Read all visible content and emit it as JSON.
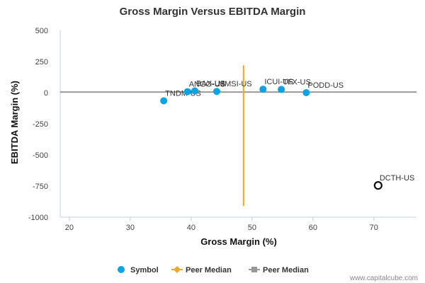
{
  "chart_data": {
    "type": "scatter",
    "title": "Gross Margin Versus EBITDA Margin",
    "xlabel": "Gross Margin (%)",
    "ylabel": "EBITDA Margin (%)",
    "xlim": [
      18.5,
      77
    ],
    "ylim": [
      -1000,
      500
    ],
    "x_ticks": [
      20,
      30,
      40,
      50,
      60,
      70
    ],
    "y_ticks": [
      500,
      250,
      0,
      -250,
      -500,
      -750,
      -1000
    ],
    "points": [
      {
        "label": "TNDM-US",
        "x": 35.5,
        "y": -65,
        "style": "filled"
      },
      {
        "label": "ANGO-US",
        "x": 39.4,
        "y": 8,
        "style": "filled"
      },
      {
        "label": "BAX-US",
        "x": 40.6,
        "y": 14,
        "style": "filled"
      },
      {
        "label": "MMSI-US",
        "x": 44.2,
        "y": 10,
        "style": "filled"
      },
      {
        "label": "ICUI-US",
        "x": 51.8,
        "y": 28,
        "style": "filled"
      },
      {
        "label": "TFX-US",
        "x": 54.8,
        "y": 26,
        "style": "filled"
      },
      {
        "label": "PODD-US",
        "x": 58.9,
        "y": 0,
        "style": "filled"
      },
      {
        "label": "DCTH-US",
        "x": 70.7,
        "y": -745,
        "style": "hollow"
      }
    ],
    "peer_median_x": 48.6,
    "peer_median_x_range": [
      -910,
      220
    ],
    "peer_median_y": 5,
    "legend": [
      {
        "name": "Symbol",
        "marker": "circle",
        "color": "#0aa3e8"
      },
      {
        "name": "Peer Median",
        "marker": "diamond-line",
        "color": "#f5a623"
      },
      {
        "name": "Peer Median",
        "marker": "square-line",
        "color": "#999999"
      }
    ],
    "legend_position": "bottom-center",
    "colors": {
      "symbol": "#0aa3e8",
      "peer_median_vertical": "#f5a623",
      "peer_median_horizontal": "#999999",
      "highlight": "#111111",
      "axis": "#c0d0e0"
    }
  },
  "credit": "www.capitalcube.com"
}
